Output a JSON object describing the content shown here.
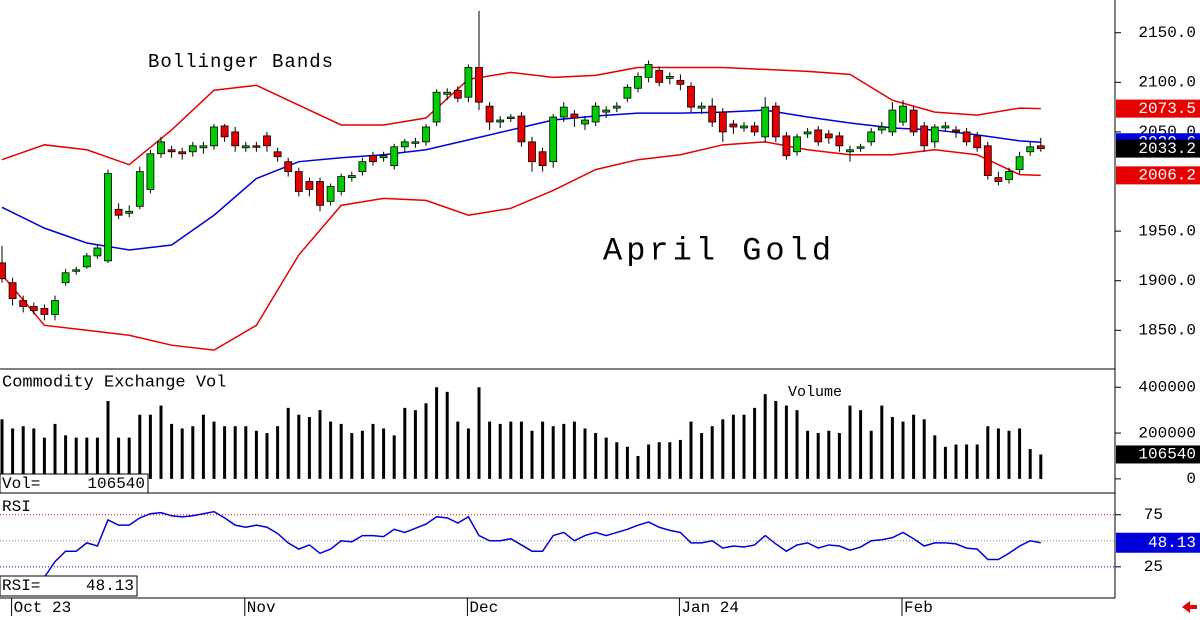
{
  "chart_data": [
    {
      "type": "candlestick",
      "title": "April Gold",
      "annotation": "Bollinger Bands",
      "ylim": [
        1812,
        2183
      ],
      "yticks": [
        {
          "value": 2150,
          "label": "2150.0"
        },
        {
          "value": 2100,
          "label": "2100.0"
        },
        {
          "value": 2050,
          "label": "2050.0"
        },
        {
          "value": 1950,
          "label": "1950.0"
        },
        {
          "value": 1900,
          "label": "1900.0"
        },
        {
          "value": 1850,
          "label": "1850.0"
        }
      ],
      "colors": {
        "up": "#00cc00",
        "down": "#e60000"
      },
      "ohlc": [
        [
          1918,
          1935,
          1898,
          1902
        ],
        [
          1898,
          1903,
          1875,
          1882
        ],
        [
          1880,
          1885,
          1868,
          1874
        ],
        [
          1874,
          1878,
          1866,
          1870
        ],
        [
          1872,
          1876,
          1860,
          1866
        ],
        [
          1866,
          1885,
          1860,
          1880
        ],
        [
          1898,
          1912,
          1895,
          1908
        ],
        [
          1910,
          1914,
          1906,
          1911
        ],
        [
          1914,
          1928,
          1912,
          1925
        ],
        [
          1925,
          1937,
          1922,
          1933
        ],
        [
          1920,
          2012,
          1918,
          2008
        ],
        [
          1972,
          1978,
          1962,
          1966
        ],
        [
          1968,
          1976,
          1964,
          1970
        ],
        [
          1975,
          2015,
          1972,
          2010
        ],
        [
          1992,
          2032,
          1988,
          2028
        ],
        [
          2028,
          2045,
          2024,
          2040
        ],
        [
          2032,
          2036,
          2024,
          2030
        ],
        [
          2030,
          2034,
          2022,
          2028
        ],
        [
          2030,
          2040,
          2025,
          2036
        ],
        [
          2034,
          2040,
          2028,
          2036
        ],
        [
          2036,
          2058,
          2032,
          2055
        ],
        [
          2056,
          2058,
          2040,
          2045
        ],
        [
          2050,
          2055,
          2030,
          2036
        ],
        [
          2034,
          2040,
          2030,
          2036
        ],
        [
          2036,
          2040,
          2030,
          2035
        ],
        [
          2046,
          2050,
          2030,
          2036
        ],
        [
          2030,
          2034,
          2020,
          2025
        ],
        [
          2020,
          2024,
          2005,
          2010
        ],
        [
          2010,
          2014,
          1985,
          1990
        ],
        [
          2000,
          2004,
          1985,
          1992
        ],
        [
          2000,
          2004,
          1970,
          1976
        ],
        [
          1980,
          1998,
          1976,
          1995
        ],
        [
          1990,
          2008,
          1986,
          2005
        ],
        [
          2004,
          2010,
          2000,
          2006
        ],
        [
          2010,
          2024,
          2006,
          2020
        ],
        [
          2026,
          2030,
          2016,
          2020
        ],
        [
          2024,
          2030,
          2020,
          2026
        ],
        [
          2016,
          2038,
          2012,
          2035
        ],
        [
          2035,
          2043,
          2030,
          2040
        ],
        [
          2040,
          2044,
          2034,
          2040
        ],
        [
          2040,
          2058,
          2036,
          2055
        ],
        [
          2060,
          2093,
          2056,
          2090
        ],
        [
          2088,
          2094,
          2082,
          2090
        ],
        [
          2092,
          2096,
          2080,
          2084
        ],
        [
          2085,
          2118,
          2080,
          2115
        ],
        [
          2115,
          2172,
          2072,
          2080
        ],
        [
          2076,
          2080,
          2052,
          2060
        ],
        [
          2060,
          2066,
          2054,
          2062
        ],
        [
          2064,
          2068,
          2060,
          2065
        ],
        [
          2066,
          2070,
          2035,
          2040
        ],
        [
          2040,
          2045,
          2010,
          2020
        ],
        [
          2030,
          2034,
          2010,
          2016
        ],
        [
          2020,
          2068,
          2014,
          2065
        ],
        [
          2065,
          2080,
          2060,
          2075
        ],
        [
          2068,
          2072,
          2055,
          2064
        ],
        [
          2058,
          2066,
          2052,
          2062
        ],
        [
          2060,
          2080,
          2056,
          2076
        ],
        [
          2070,
          2076,
          2064,
          2072
        ],
        [
          2074,
          2080,
          2070,
          2076
        ],
        [
          2084,
          2098,
          2080,
          2095
        ],
        [
          2094,
          2110,
          2090,
          2106
        ],
        [
          2105,
          2122,
          2100,
          2118
        ],
        [
          2112,
          2116,
          2096,
          2100
        ],
        [
          2104,
          2110,
          2098,
          2106
        ],
        [
          2102,
          2108,
          2092,
          2098
        ],
        [
          2096,
          2100,
          2070,
          2075
        ],
        [
          2074,
          2080,
          2068,
          2076
        ],
        [
          2076,
          2084,
          2055,
          2060
        ],
        [
          2070,
          2074,
          2040,
          2050
        ],
        [
          2058,
          2062,
          2048,
          2055
        ],
        [
          2054,
          2060,
          2050,
          2056
        ],
        [
          2056,
          2060,
          2046,
          2050
        ],
        [
          2045,
          2085,
          2040,
          2075
        ],
        [
          2076,
          2080,
          2040,
          2045
        ],
        [
          2046,
          2050,
          2022,
          2026
        ],
        [
          2030,
          2048,
          2026,
          2045
        ],
        [
          2048,
          2054,
          2044,
          2050
        ],
        [
          2052,
          2056,
          2036,
          2040
        ],
        [
          2048,
          2052,
          2038,
          2044
        ],
        [
          2046,
          2050,
          2030,
          2036
        ],
        [
          2030,
          2036,
          2020,
          2032
        ],
        [
          2034,
          2038,
          2030,
          2035
        ],
        [
          2040,
          2054,
          2036,
          2050
        ],
        [
          2052,
          2060,
          2048,
          2055
        ],
        [
          2050,
          2080,
          2046,
          2072
        ],
        [
          2060,
          2082,
          2056,
          2076
        ],
        [
          2072,
          2076,
          2046,
          2050
        ],
        [
          2056,
          2060,
          2030,
          2036
        ],
        [
          2040,
          2058,
          2034,
          2055
        ],
        [
          2054,
          2060,
          2050,
          2056
        ],
        [
          2052,
          2056,
          2044,
          2050
        ],
        [
          2050,
          2054,
          2036,
          2040
        ],
        [
          2046,
          2050,
          2030,
          2034
        ],
        [
          2036,
          2040,
          2002,
          2006
        ],
        [
          2004,
          2010,
          1996,
          2000
        ],
        [
          2002,
          2014,
          1998,
          2010
        ],
        [
          2012,
          2030,
          2008,
          2025
        ],
        [
          2030,
          2040,
          2026,
          2035
        ],
        [
          2036,
          2044,
          2030,
          2033.2
        ]
      ],
      "bands": {
        "x": [
          0,
          4,
          8,
          12,
          16,
          20,
          24,
          28,
          32,
          36,
          40,
          44,
          48,
          52,
          56,
          60,
          64,
          68,
          72,
          76,
          80,
          84,
          88,
          92,
          96,
          98
        ],
        "series": [
          {
            "color": "#e60000",
            "values": [
              2022,
              2037,
              2032,
              2017,
              2052,
              2092,
              2097,
              2077,
              2057,
              2057,
              2064,
              2103,
              2110,
              2105,
              2107,
              2115,
              2115,
              2115,
              2113,
              2111,
              2108,
              2082,
              2070,
              2067,
              2074,
              2073.5
            ]
          },
          {
            "color": "#0000dd",
            "values": [
              1974,
              1953,
              1938,
              1931,
              1936,
              1966,
              2003,
              2020,
              2024,
              2027,
              2032,
              2042,
              2052,
              2062,
              2066,
              2069,
              2069,
              2070,
              2072,
              2065,
              2059,
              2054,
              2052,
              2047,
              2041,
              2039.6
            ]
          },
          {
            "color": "#e60000",
            "values": [
              1906,
              1855,
              1850,
              1845,
              1835,
              1830,
              1855,
              1926,
              1976,
              1983,
              1981,
              1966,
              1973,
              1991,
              2012,
              2022,
              2027,
              2037,
              2040,
              2032,
              2027,
              2027,
              2032,
              2027,
              2007,
              2006.2
            ]
          }
        ]
      }
    },
    {
      "type": "bar",
      "title": "Commodity Exchange Vol",
      "label": "Volume",
      "readout_label": "Vol=",
      "color": "#000000",
      "ylim": [
        -53000,
        471000
      ],
      "yticks": [
        400000,
        200000,
        0
      ],
      "values": [
        260000,
        220000,
        230000,
        220000,
        180000,
        240000,
        190000,
        180000,
        180000,
        180000,
        340000,
        180000,
        180000,
        280000,
        280000,
        320000,
        240000,
        220000,
        230000,
        280000,
        250000,
        230000,
        230000,
        230000,
        210000,
        200000,
        230000,
        310000,
        280000,
        270000,
        300000,
        250000,
        240000,
        200000,
        210000,
        240000,
        220000,
        190000,
        310000,
        300000,
        330000,
        400000,
        380000,
        250000,
        220000,
        400000,
        250000,
        240000,
        250000,
        250000,
        210000,
        250000,
        230000,
        240000,
        250000,
        220000,
        200000,
        180000,
        160000,
        140000,
        100000,
        150000,
        160000,
        160000,
        170000,
        250000,
        200000,
        230000,
        260000,
        280000,
        280000,
        310000,
        370000,
        340000,
        320000,
        300000,
        210000,
        200000,
        210000,
        200000,
        320000,
        300000,
        210000,
        320000,
        270000,
        250000,
        280000,
        260000,
        190000,
        140000,
        150000,
        150000,
        150000,
        230000,
        220000,
        210000,
        220000,
        130000,
        106540
      ]
    },
    {
      "type": "line",
      "title": "RSI",
      "readout_label": "RSI=",
      "color": "#0000dd",
      "ylim": [
        -3,
        93
      ],
      "yticks": [
        75,
        25
      ],
      "levels": [
        {
          "value": 75,
          "color": "#e60000"
        },
        {
          "value": 50,
          "color": "#888888"
        },
        {
          "value": 25,
          "color": "#0000dd"
        }
      ],
      "xticks": [
        {
          "value": 1,
          "label": "Oct 23"
        },
        {
          "value": 23,
          "label": "Nov"
        },
        {
          "value": 44,
          "label": "Dec"
        },
        {
          "value": 64,
          "label": "Jan 24"
        },
        {
          "value": 85,
          "label": "Feb"
        }
      ],
      "values": [
        null,
        null,
        null,
        null,
        15,
        30,
        40,
        40,
        48,
        45,
        70,
        65,
        65,
        72,
        76,
        77,
        74,
        73,
        74,
        76,
        78,
        72,
        65,
        63,
        65,
        63,
        57,
        48,
        42,
        46,
        38,
        42,
        50,
        49,
        55,
        55,
        54,
        61,
        58,
        62,
        66,
        73,
        72,
        67,
        73,
        55,
        50,
        50,
        52,
        46,
        40,
        40,
        55,
        58,
        50,
        55,
        58,
        55,
        58,
        61,
        65,
        68,
        63,
        60,
        58,
        48,
        48,
        50,
        43,
        45,
        44,
        46,
        55,
        47,
        40,
        46,
        48,
        43,
        46,
        45,
        41,
        44,
        50,
        51,
        53,
        58,
        52,
        45,
        48,
        48,
        47,
        43,
        42,
        32,
        32,
        38,
        45,
        50,
        48.13
      ]
    }
  ]
}
